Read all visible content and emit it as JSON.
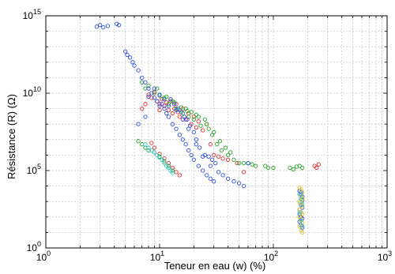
{
  "chart_data": {
    "type": "scatter",
    "title": "",
    "xlabel": "Teneur en eau (w) (%)",
    "ylabel": "Résistance (R) (Ω)",
    "x_scale": "log",
    "y_scale": "log",
    "xlim": [
      1,
      1000
    ],
    "ylim": [
      1,
      1000000000000000
    ],
    "grid": true,
    "x_ticks": [
      {
        "value": 1,
        "base": "10",
        "exp": "0"
      },
      {
        "value": 10,
        "base": "10",
        "exp": "1"
      },
      {
        "value": 100,
        "base": "10",
        "exp": "2"
      },
      {
        "value": 1000,
        "base": "10",
        "exp": "3"
      }
    ],
    "y_ticks": [
      {
        "value": 1,
        "base": "10",
        "exp": "0"
      },
      {
        "value": 100000,
        "base": "10",
        "exp": "5"
      },
      {
        "value": 10000000000,
        "base": "10",
        "exp": "10"
      },
      {
        "value": 1000000000000000,
        "base": "10",
        "exp": "15"
      }
    ],
    "series": [
      {
        "color": "#e03030",
        "points": [
          [
            8,
            8000000000.0
          ],
          [
            8.5,
            5000000000.0
          ],
          [
            9,
            12000000000.0
          ],
          [
            9.5,
            3000000000.0
          ],
          [
            10,
            2000000000.0
          ],
          [
            10.5,
            4000000000.0
          ],
          [
            11,
            1500000000.0
          ],
          [
            12,
            800000000.0
          ],
          [
            12.5,
            3000000000.0
          ],
          [
            13,
            500000000.0
          ],
          [
            14,
            2000000000.0
          ],
          [
            14.5,
            600000000.0
          ],
          [
            15,
            300000000.0
          ],
          [
            16,
            1000000000.0
          ],
          [
            17,
            200000000.0
          ],
          [
            18,
            500000000.0
          ],
          [
            19,
            100000000.0
          ],
          [
            20,
            300000000.0
          ],
          [
            21,
            60000000.0
          ],
          [
            22,
            150000000.0
          ],
          [
            24,
            40000000.0
          ],
          [
            26,
            100000000.0
          ],
          [
            28,
            5000000.0
          ],
          [
            30,
            1000000.0
          ],
          [
            33,
            800000.0
          ],
          [
            36,
            600000.0
          ],
          [
            40,
            500000.0
          ],
          [
            48,
            300000.0
          ],
          [
            55,
            80000.0
          ],
          [
            230,
            200000.0
          ],
          [
            240,
            150000.0
          ],
          [
            250,
            250000.0
          ],
          [
            8.5,
            6000000.0
          ],
          [
            9,
            3000000.0
          ],
          [
            10,
            1200000.0
          ],
          [
            11,
            600000.0
          ],
          [
            12,
            300000.0
          ],
          [
            13,
            150000.0
          ],
          [
            14,
            80000.0
          ],
          [
            15,
            50000.0
          ],
          [
            7,
            1000000000.0
          ],
          [
            7.5,
            2000000000.0
          ],
          [
            10,
            800000000.0
          ],
          [
            11.5,
            2500000000.0
          ],
          [
            13.5,
            1000000000.0
          ]
        ]
      },
      {
        "color": "#2ca02c",
        "points": [
          [
            7,
            50000000000.0
          ],
          [
            7.5,
            20000000000.0
          ],
          [
            8,
            30000000000.0
          ],
          [
            9,
            10000000000.0
          ],
          [
            10,
            7000000000.0
          ],
          [
            11,
            5000000000.0
          ],
          [
            12,
            2000000000.0
          ],
          [
            13,
            3000000000.0
          ],
          [
            14,
            1000000000.0
          ],
          [
            15,
            800000000.0
          ],
          [
            16,
            500000000.0
          ],
          [
            17,
            1000000000.0
          ],
          [
            18,
            300000000.0
          ],
          [
            19,
            600000000.0
          ],
          [
            20,
            200000000.0
          ],
          [
            21,
            400000000.0
          ],
          [
            23,
            80000000.0
          ],
          [
            25,
            200000000.0
          ],
          [
            27,
            50000000.0
          ],
          [
            29,
            20000000.0
          ],
          [
            32,
            5000000.0
          ],
          [
            35,
            2000000.0
          ],
          [
            40,
            1000000.0
          ],
          [
            45,
            500000.0
          ],
          [
            50,
            300000.0
          ],
          [
            55,
            300000.0
          ],
          [
            60,
            300000.0
          ],
          [
            65,
            250000.0
          ],
          [
            70,
            200000.0
          ],
          [
            85,
            200000.0
          ],
          [
            90,
            150000.0
          ],
          [
            100,
            150000.0
          ],
          [
            140,
            150000.0
          ],
          [
            150,
            120000.0
          ],
          [
            160,
            180000.0
          ],
          [
            170,
            200000.0
          ],
          [
            180,
            150000.0
          ],
          [
            6.5,
            8000000.0
          ],
          [
            7,
            5000000.0
          ],
          [
            7.5,
            3000000.0
          ],
          [
            8,
            2000000.0
          ],
          [
            9,
            1500000.0
          ],
          [
            10,
            800000.0
          ],
          [
            11,
            400000.0
          ],
          [
            12,
            200000.0
          ],
          [
            13,
            100000.0
          ],
          [
            9.5,
            20000000000.0
          ],
          [
            11.5,
            6000000000.0
          ],
          [
            12.5,
            4000000000.0
          ],
          [
            13.5,
            2500000000.0
          ],
          [
            15.5,
            1200000000.0
          ],
          [
            17.5,
            700000000.0
          ],
          [
            22,
            300000000.0
          ],
          [
            26,
            100000000.0
          ],
          [
            30,
            30000000.0
          ],
          [
            34,
            8000000.0
          ],
          [
            38,
            3000000.0
          ],
          [
            42,
            1500000.0
          ]
        ]
      },
      {
        "color": "#3050e0",
        "points": [
          [
            2.8,
            200000000000000.0
          ],
          [
            3,
            250000000000000.0
          ],
          [
            3.2,
            180000000000000.0
          ],
          [
            3.5,
            220000000000000.0
          ],
          [
            4.2,
            300000000000000.0
          ],
          [
            4.4,
            250000000000000.0
          ],
          [
            5,
            5000000000000.0
          ],
          [
            5.2,
            3000000000000.0
          ],
          [
            5.5,
            2000000000000.0
          ],
          [
            5.8,
            1000000000000.0
          ],
          [
            6,
            600000000000.0
          ],
          [
            6.5,
            300000000000.0
          ],
          [
            7,
            100000000000.0
          ],
          [
            7.5,
            50000000000.0
          ],
          [
            8,
            20000000000.0
          ],
          [
            8.5,
            10000000000.0
          ],
          [
            9,
            5000000000.0
          ],
          [
            9.5,
            3000000000.0
          ],
          [
            10,
            1500000000.0
          ],
          [
            10.5,
            2000000000.0
          ],
          [
            11,
            1000000000.0
          ],
          [
            11.5,
            500000000.0
          ],
          [
            12,
            300000000.0
          ],
          [
            13,
            100000000.0
          ],
          [
            14,
            50000000.0
          ],
          [
            15,
            20000000.0
          ],
          [
            16,
            10000000.0
          ],
          [
            17,
            5000000.0
          ],
          [
            18,
            2000000.0
          ],
          [
            19,
            1000000.0
          ],
          [
            20,
            500000.0
          ],
          [
            22,
            200000.0
          ],
          [
            24,
            100000.0
          ],
          [
            26,
            50000.0
          ],
          [
            28,
            30000.0
          ],
          [
            30,
            20000.0
          ],
          [
            33,
            80000.0
          ],
          [
            36,
            50000.0
          ],
          [
            40,
            30000.0
          ],
          [
            45,
            20000.0
          ],
          [
            50,
            15000.0
          ],
          [
            55,
            10000.0
          ],
          [
            60,
            300000.0
          ],
          [
            12.5,
            4000000000.0
          ],
          [
            13.5,
            2000000000.0
          ],
          [
            14.5,
            1000000000.0
          ],
          [
            15.5,
            600000000.0
          ],
          [
            16.5,
            300000000.0
          ],
          [
            17.5,
            200000000.0
          ],
          [
            18.5,
            80000000.0
          ],
          [
            20,
            30000000.0
          ],
          [
            21,
            10000000.0
          ],
          [
            22.5,
            3000000.0
          ],
          [
            25,
            1000000.0
          ],
          [
            27,
            800000.0
          ],
          [
            29,
            500000.0
          ],
          [
            31,
            300000.0
          ],
          [
            8,
            6000000000.0
          ],
          [
            9,
            20000000000.0
          ],
          [
            10,
            8000000000.0
          ],
          [
            11,
            4000000000.0
          ],
          [
            12,
            1500000000.0
          ],
          [
            14,
            800000000.0
          ],
          [
            16,
            200000000.0
          ],
          [
            18,
            50000000.0
          ],
          [
            21,
            5000000.0
          ],
          [
            24,
            800000.0
          ],
          [
            28,
            200000.0
          ],
          [
            6.5,
            100000000.0
          ],
          [
            7.5,
            300000000.0
          ],
          [
            170,
            5000.0
          ],
          [
            175,
            3000.0
          ],
          [
            180,
            2000.0
          ],
          [
            170,
            1000.0
          ],
          [
            175,
            600.0
          ],
          [
            180,
            400.0
          ],
          [
            170,
            150.0
          ],
          [
            175,
            100.0
          ],
          [
            180,
            80
          ],
          [
            170,
            50
          ],
          [
            175,
            30
          ],
          [
            180,
            20
          ],
          [
            170,
            300
          ],
          [
            175,
            200.0
          ],
          [
            180,
            1200.0
          ],
          [
            175,
            4000.0
          ]
        ]
      },
      {
        "color": "#d8c020",
        "points": [
          [
            170,
            8000.0
          ],
          [
            175,
            6000.0
          ],
          [
            180,
            4000.0
          ],
          [
            170,
            3000.0
          ],
          [
            175,
            2000.0
          ],
          [
            180,
            1500.0
          ],
          [
            170,
            1000.0
          ],
          [
            175,
            800.0
          ],
          [
            180,
            500.0
          ],
          [
            170,
            300.0
          ],
          [
            175,
            200.0
          ],
          [
            180,
            150.0
          ],
          [
            170,
            100.0
          ],
          [
            175,
            70
          ],
          [
            180,
            40
          ],
          [
            170,
            25
          ],
          [
            175,
            15
          ],
          [
            180,
            10
          ]
        ]
      },
      {
        "color": "#30c8c8",
        "points": [
          [
            8,
            3000000.0
          ],
          [
            8.5,
            2000000.0
          ],
          [
            9,
            1500000.0
          ],
          [
            9.5,
            1000000.0
          ],
          [
            10,
            700000.0
          ],
          [
            10.5,
            500000.0
          ],
          [
            11,
            300000.0
          ],
          [
            11.5,
            200000.0
          ],
          [
            12,
            150000.0
          ],
          [
            12.5,
            100000.0
          ],
          [
            13,
            70000.0
          ],
          [
            7.5,
            5000000.0
          ],
          [
            170,
            3000.0
          ],
          [
            175,
            1500.0
          ],
          [
            180,
            700.0
          ],
          [
            170,
            200.0
          ],
          [
            175,
            60
          ],
          [
            180,
            25
          ]
        ]
      }
    ]
  }
}
